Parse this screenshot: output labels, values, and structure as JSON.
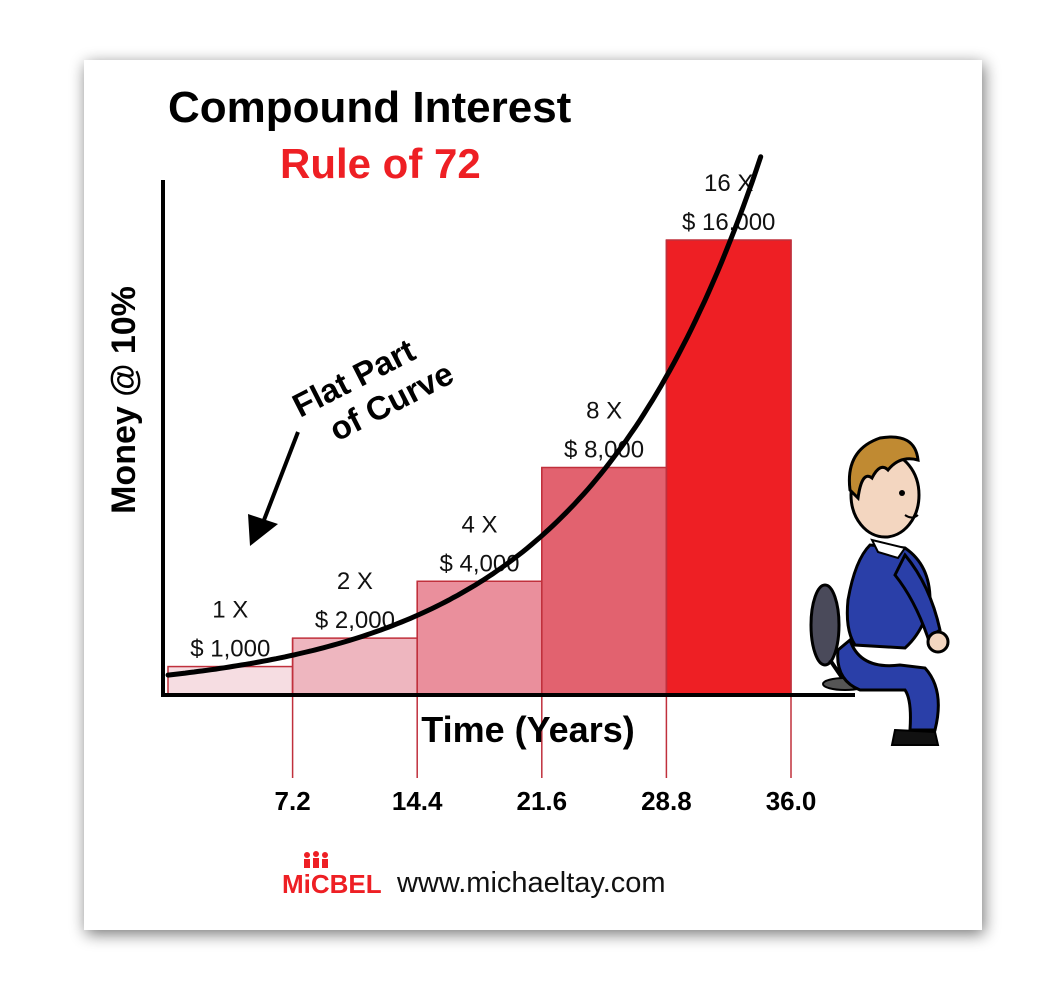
{
  "chart_data": {
    "type": "bar",
    "title": "Compound Interest",
    "subtitle": "Rule of 72",
    "xlabel": "Time (Years)",
    "ylabel": "Money @ 10%",
    "x_ticks": [
      "7.2",
      "14.4",
      "21.6",
      "28.8",
      "36.0"
    ],
    "x_range": [
      0,
      36
    ],
    "ylim": [
      0,
      18000
    ],
    "bars": [
      {
        "x_start": 0,
        "x_end": 7.2,
        "value": 1000,
        "multiple": "1 X",
        "amount": "$ 1,000",
        "color": "#f6dde2"
      },
      {
        "x_start": 7.2,
        "x_end": 14.4,
        "value": 2000,
        "multiple": "2 X",
        "amount": "$ 2,000",
        "color": "#eeb6bf"
      },
      {
        "x_start": 14.4,
        "x_end": 21.6,
        "value": 4000,
        "multiple": "4 X",
        "amount": "$ 4,000",
        "color": "#ea8f9c"
      },
      {
        "x_start": 21.6,
        "x_end": 28.8,
        "value": 8000,
        "multiple": "8 X",
        "amount": "$ 8,000",
        "color": "#e2626f"
      },
      {
        "x_start": 28.8,
        "x_end": 36.0,
        "value": 16000,
        "multiple": "16 X",
        "amount": "$ 16,000",
        "color": "#ee1f24"
      }
    ],
    "curve": {
      "type": "exponential",
      "doubling_period": 7.2,
      "points": [
        [
          0,
          700
        ],
        [
          7.2,
          1400
        ],
        [
          14.4,
          2800
        ],
        [
          21.6,
          5600
        ],
        [
          28.8,
          11100
        ],
        [
          36.0,
          22200
        ]
      ]
    },
    "annotation": {
      "line1": "Flat Part",
      "line2": "of Curve"
    },
    "grid": false,
    "legend": "none"
  },
  "colors": {
    "title": "#000000",
    "subtitle": "#ee1f24",
    "bar_edge": "#c0303c",
    "axis": "#000000",
    "curve": "#000000",
    "brand": "#ee1f24"
  },
  "footer": {
    "brand": "MiCBEL",
    "website": "www.michaeltay.com"
  },
  "illustration": {
    "icon": "businessman-sitting-on-chair-icon"
  }
}
